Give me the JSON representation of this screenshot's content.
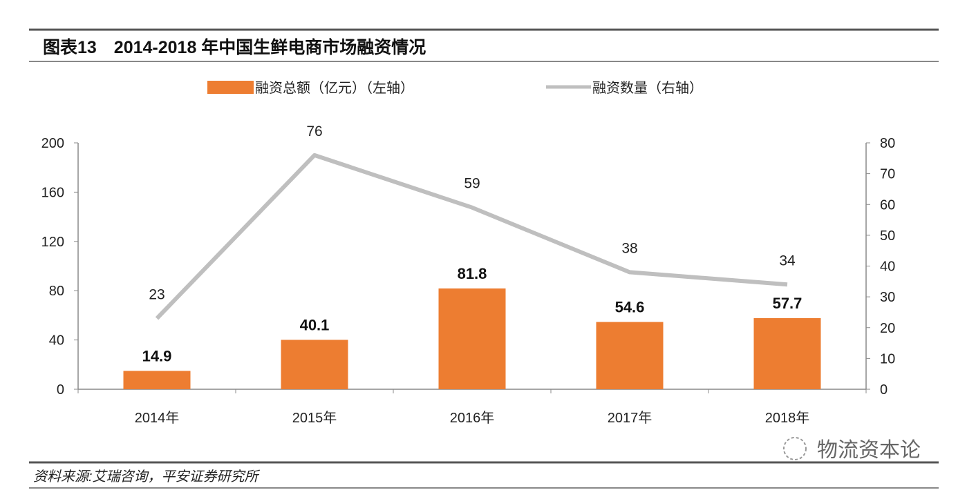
{
  "title": "图表13　2014-2018 年中国生鲜电商市场融资情况",
  "source": "资料来源:艾瑞咨询，平安证券研究所",
  "watermark": "物流资本论",
  "chart_data": {
    "type": "bar+line",
    "categories": [
      "2014年",
      "2015年",
      "2016年",
      "2017年",
      "2018年"
    ],
    "series": [
      {
        "name": "融资总额（亿元）（左轴）",
        "type": "bar",
        "axis": "left",
        "color": "#ED7D31",
        "values": [
          14.9,
          40.1,
          81.8,
          54.6,
          57.7
        ]
      },
      {
        "name": "融资数量（右轴）",
        "type": "line",
        "axis": "right",
        "color": "#BFBFBF",
        "values": [
          23,
          76,
          59,
          38,
          34
        ]
      }
    ],
    "left_axis": {
      "ylim": [
        0,
        200
      ],
      "ticks": [
        0,
        40,
        80,
        120,
        160,
        200
      ]
    },
    "right_axis": {
      "ylim": [
        0,
        80
      ],
      "ticks": [
        0,
        10,
        20,
        30,
        40,
        50,
        60,
        70,
        80
      ]
    },
    "legend_position": "top",
    "grid": false
  }
}
